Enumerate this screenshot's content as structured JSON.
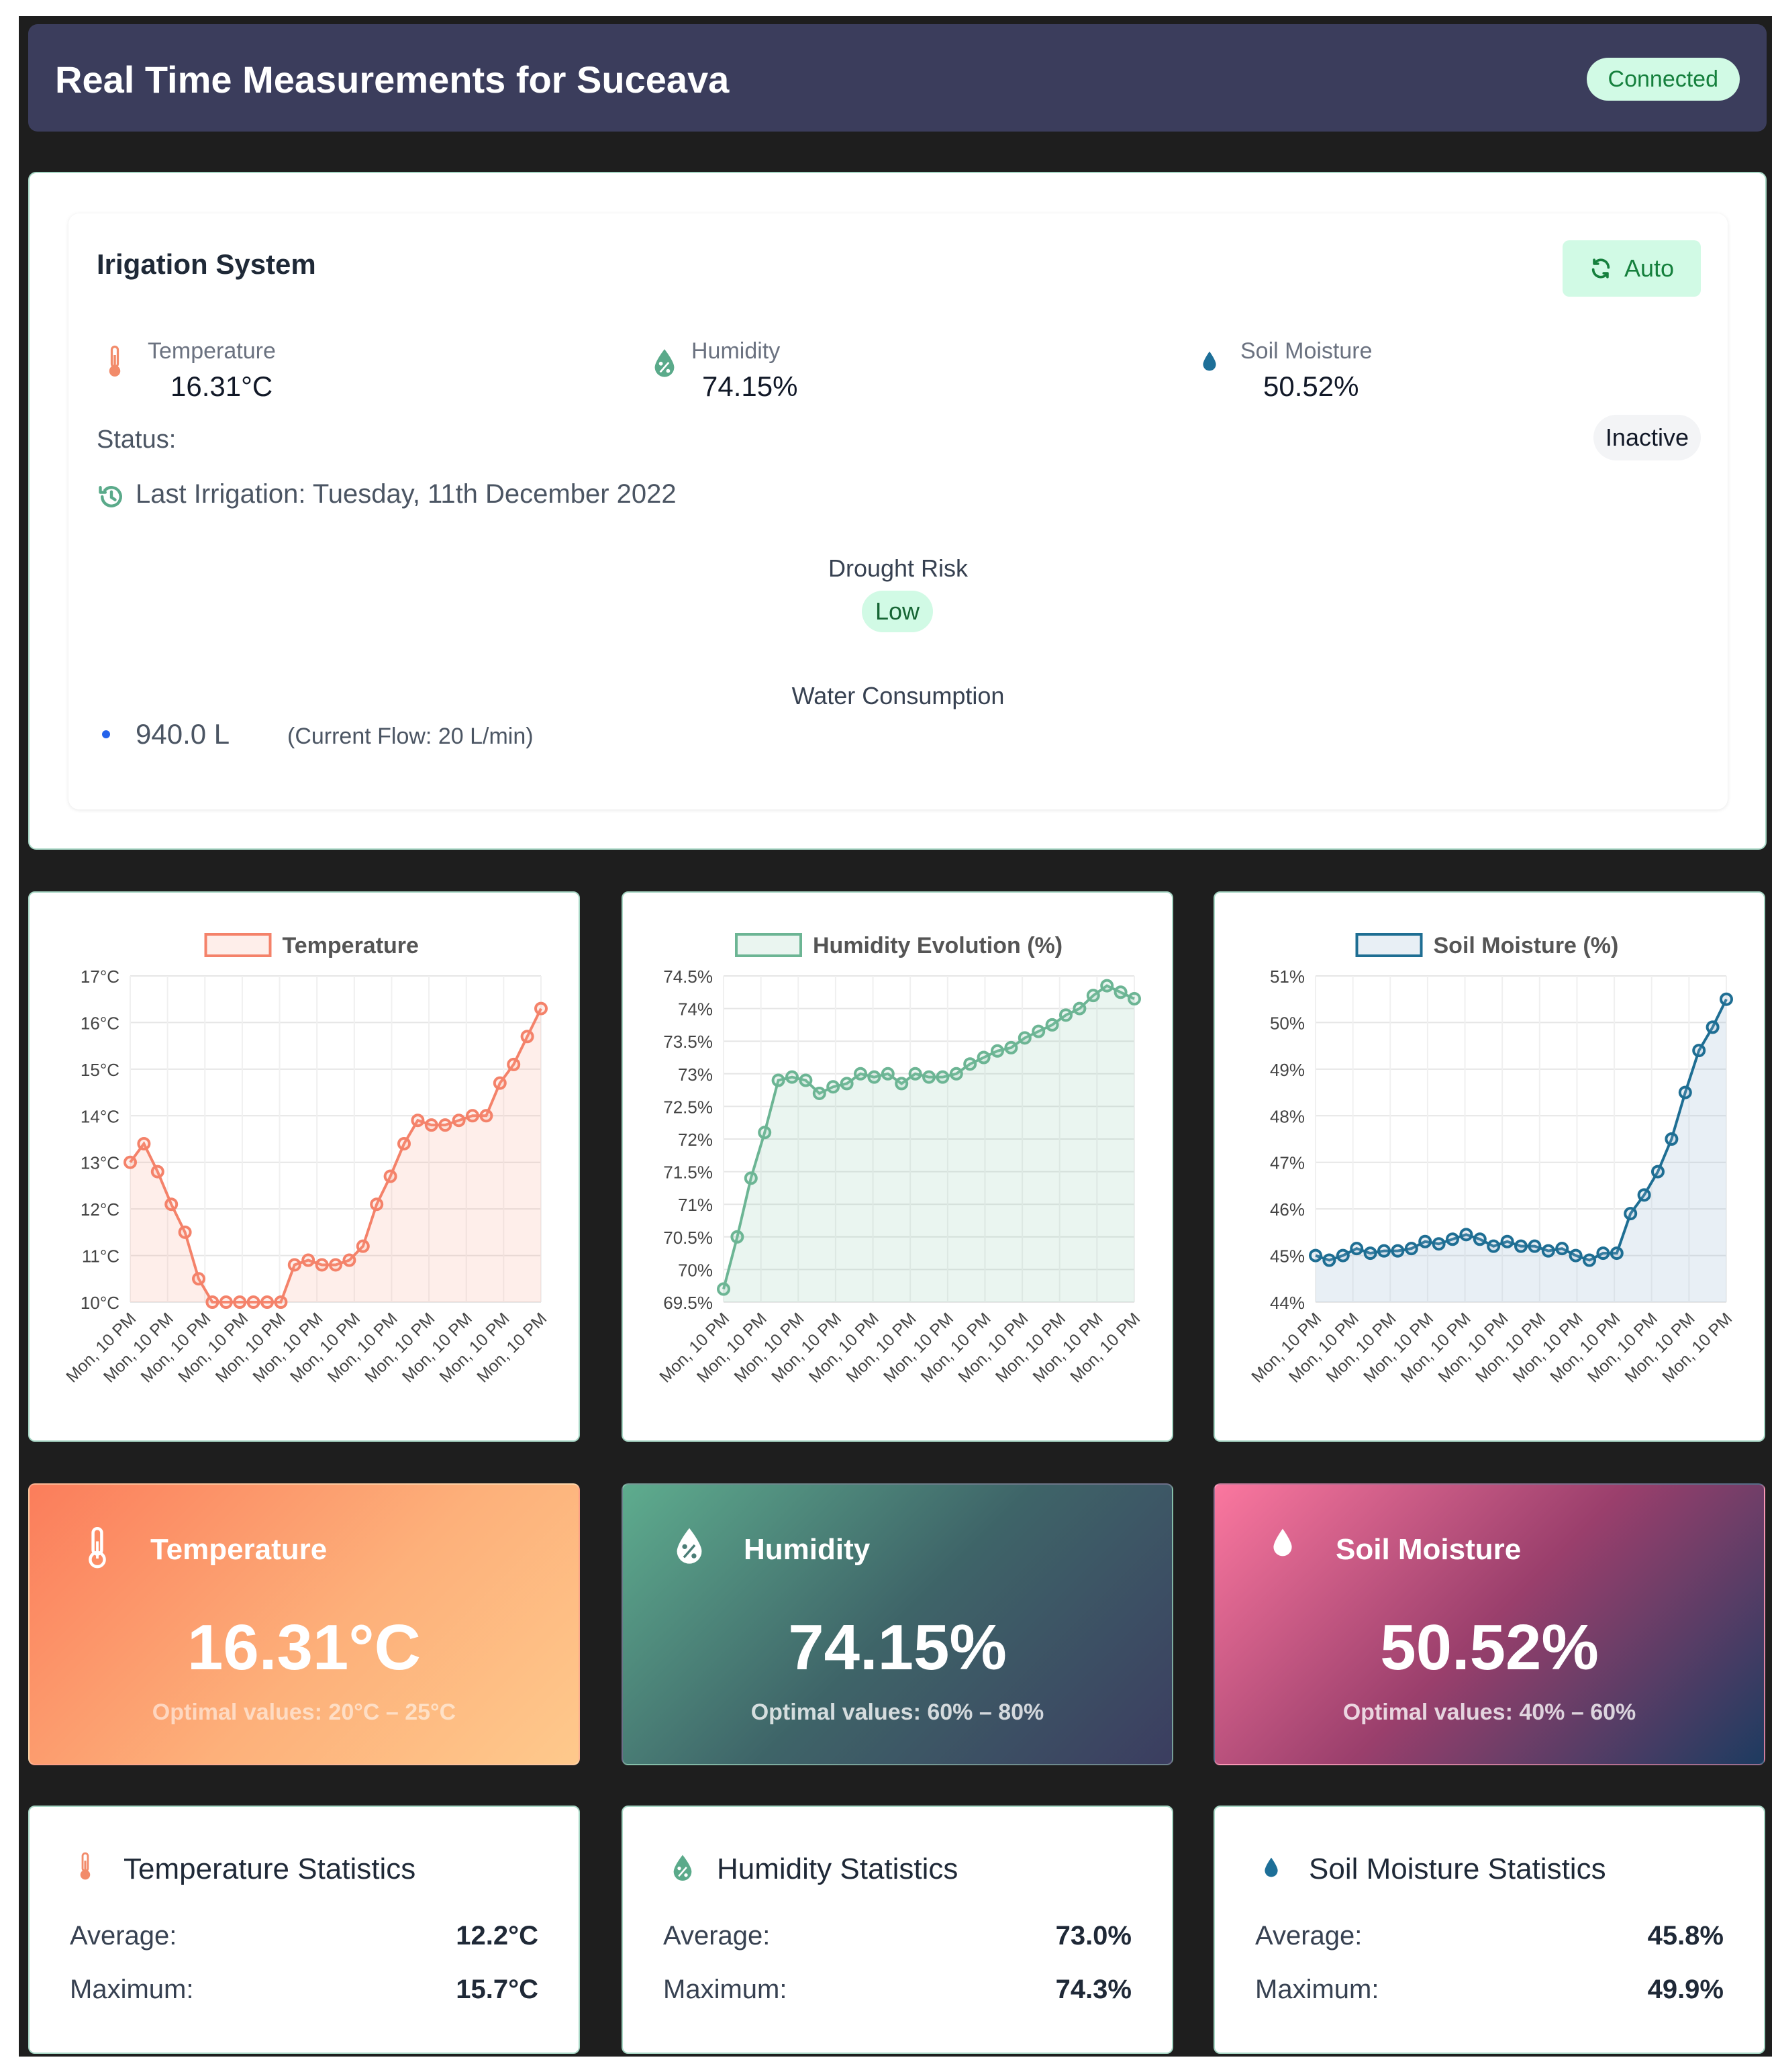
{
  "header": {
    "title": "Real Time Measurements for Suceava",
    "status_badge": "Connected"
  },
  "irrigation": {
    "title": "Irigation System",
    "mode_button": "Auto",
    "metrics": [
      {
        "label": "Temperature",
        "value": "16.31°C",
        "icon": "thermometer-icon",
        "color": "#f28b6a"
      },
      {
        "label": "Humidity",
        "value": "74.15%",
        "icon": "humidity-percent-icon",
        "color": "#5aaa8a"
      },
      {
        "label": "Soil Moisture",
        "value": "50.52%",
        "icon": "water-drop-icon",
        "color": "#1d6f98"
      }
    ],
    "status_label": "Status:",
    "status_value": "Inactive",
    "last_irrigation": "Last Irrigation: Tuesday, 11th December 2022",
    "drought_label": "Drought Risk",
    "drought_value": "Low",
    "water_label": "Water Consumption",
    "water_value": "940.0 L",
    "flow": "(Current Flow: 20 L/min)"
  },
  "charts": [
    {
      "type": "line",
      "title": "Temperature",
      "legend": "Temperature",
      "color": "#f4826a",
      "fill": "rgba(250,160,140,0.18)",
      "yticks": [
        "10°C",
        "11°C",
        "12°C",
        "13°C",
        "14°C",
        "15°C",
        "16°C",
        "17°C"
      ],
      "ylim": [
        10,
        17
      ],
      "xlabel_tick": "Mon, 10 PM",
      "xtick_count": 12,
      "values": [
        13.0,
        13.4,
        12.8,
        12.1,
        11.5,
        10.5,
        10.0,
        10.0,
        10.0,
        10.0,
        10.0,
        10.0,
        10.8,
        10.9,
        10.8,
        10.8,
        10.9,
        11.2,
        12.1,
        12.7,
        13.4,
        13.9,
        13.8,
        13.8,
        13.9,
        14.0,
        14.0,
        14.7,
        15.1,
        15.7,
        16.3
      ]
    },
    {
      "type": "line",
      "title": "Humidity Evolution (%)",
      "legend": "Humidity Evolution (%)",
      "color": "#6cb594",
      "fill": "rgba(140,200,170,0.18)",
      "yticks": [
        "69.5%",
        "70%",
        "70.5%",
        "71%",
        "71.5%",
        "72%",
        "72.5%",
        "73%",
        "73.5%",
        "74%",
        "74.5%"
      ],
      "ylim": [
        69.5,
        74.5
      ],
      "xlabel_tick": "Mon, 10 PM",
      "xtick_count": 12,
      "values": [
        69.7,
        70.5,
        71.4,
        72.1,
        72.9,
        72.95,
        72.9,
        72.7,
        72.8,
        72.85,
        73.0,
        72.95,
        73.0,
        72.85,
        73.0,
        72.95,
        72.95,
        73.0,
        73.15,
        73.25,
        73.35,
        73.4,
        73.55,
        73.65,
        73.75,
        73.9,
        74.0,
        74.2,
        74.35,
        74.25,
        74.15
      ]
    },
    {
      "type": "line",
      "title": "Soil Moisture (%)",
      "legend": "Soil Moisture (%)",
      "color": "#1e6e93",
      "fill": "rgba(150,180,210,0.22)",
      "yticks": [
        "44%",
        "45%",
        "46%",
        "47%",
        "48%",
        "49%",
        "50%",
        "51%"
      ],
      "ylim": [
        44,
        51
      ],
      "xlabel_tick": "Mon, 10 PM",
      "xtick_count": 12,
      "values": [
        45.0,
        44.9,
        45.0,
        45.15,
        45.05,
        45.1,
        45.1,
        45.15,
        45.3,
        45.25,
        45.35,
        45.45,
        45.35,
        45.2,
        45.3,
        45.2,
        45.2,
        45.1,
        45.15,
        45.0,
        44.9,
        45.05,
        45.05,
        45.9,
        46.3,
        46.8,
        47.5,
        48.5,
        49.4,
        49.9,
        50.5
      ]
    }
  ],
  "big_cards": [
    {
      "title": "Temperature",
      "value": "16.31°C",
      "optimal": "Optimal values: 20°C – 25°C"
    },
    {
      "title": "Humidity",
      "value": "74.15%",
      "optimal": "Optimal values: 60% – 80%"
    },
    {
      "title": "Soil Moisture",
      "value": "50.52%",
      "optimal": "Optimal values: 40% – 60%"
    }
  ],
  "stats": [
    {
      "title": "Temperature Statistics",
      "avg_label": "Average:",
      "avg": "12.2°C",
      "max_label": "Maximum:",
      "max": "15.7°C"
    },
    {
      "title": "Humidity Statistics",
      "avg_label": "Average:",
      "avg": "73.0%",
      "max_label": "Maximum:",
      "max": "74.3%"
    },
    {
      "title": "Soil Moisture Statistics",
      "avg_label": "Average:",
      "avg": "45.8%",
      "max_label": "Maximum:",
      "max": "49.9%"
    }
  ]
}
